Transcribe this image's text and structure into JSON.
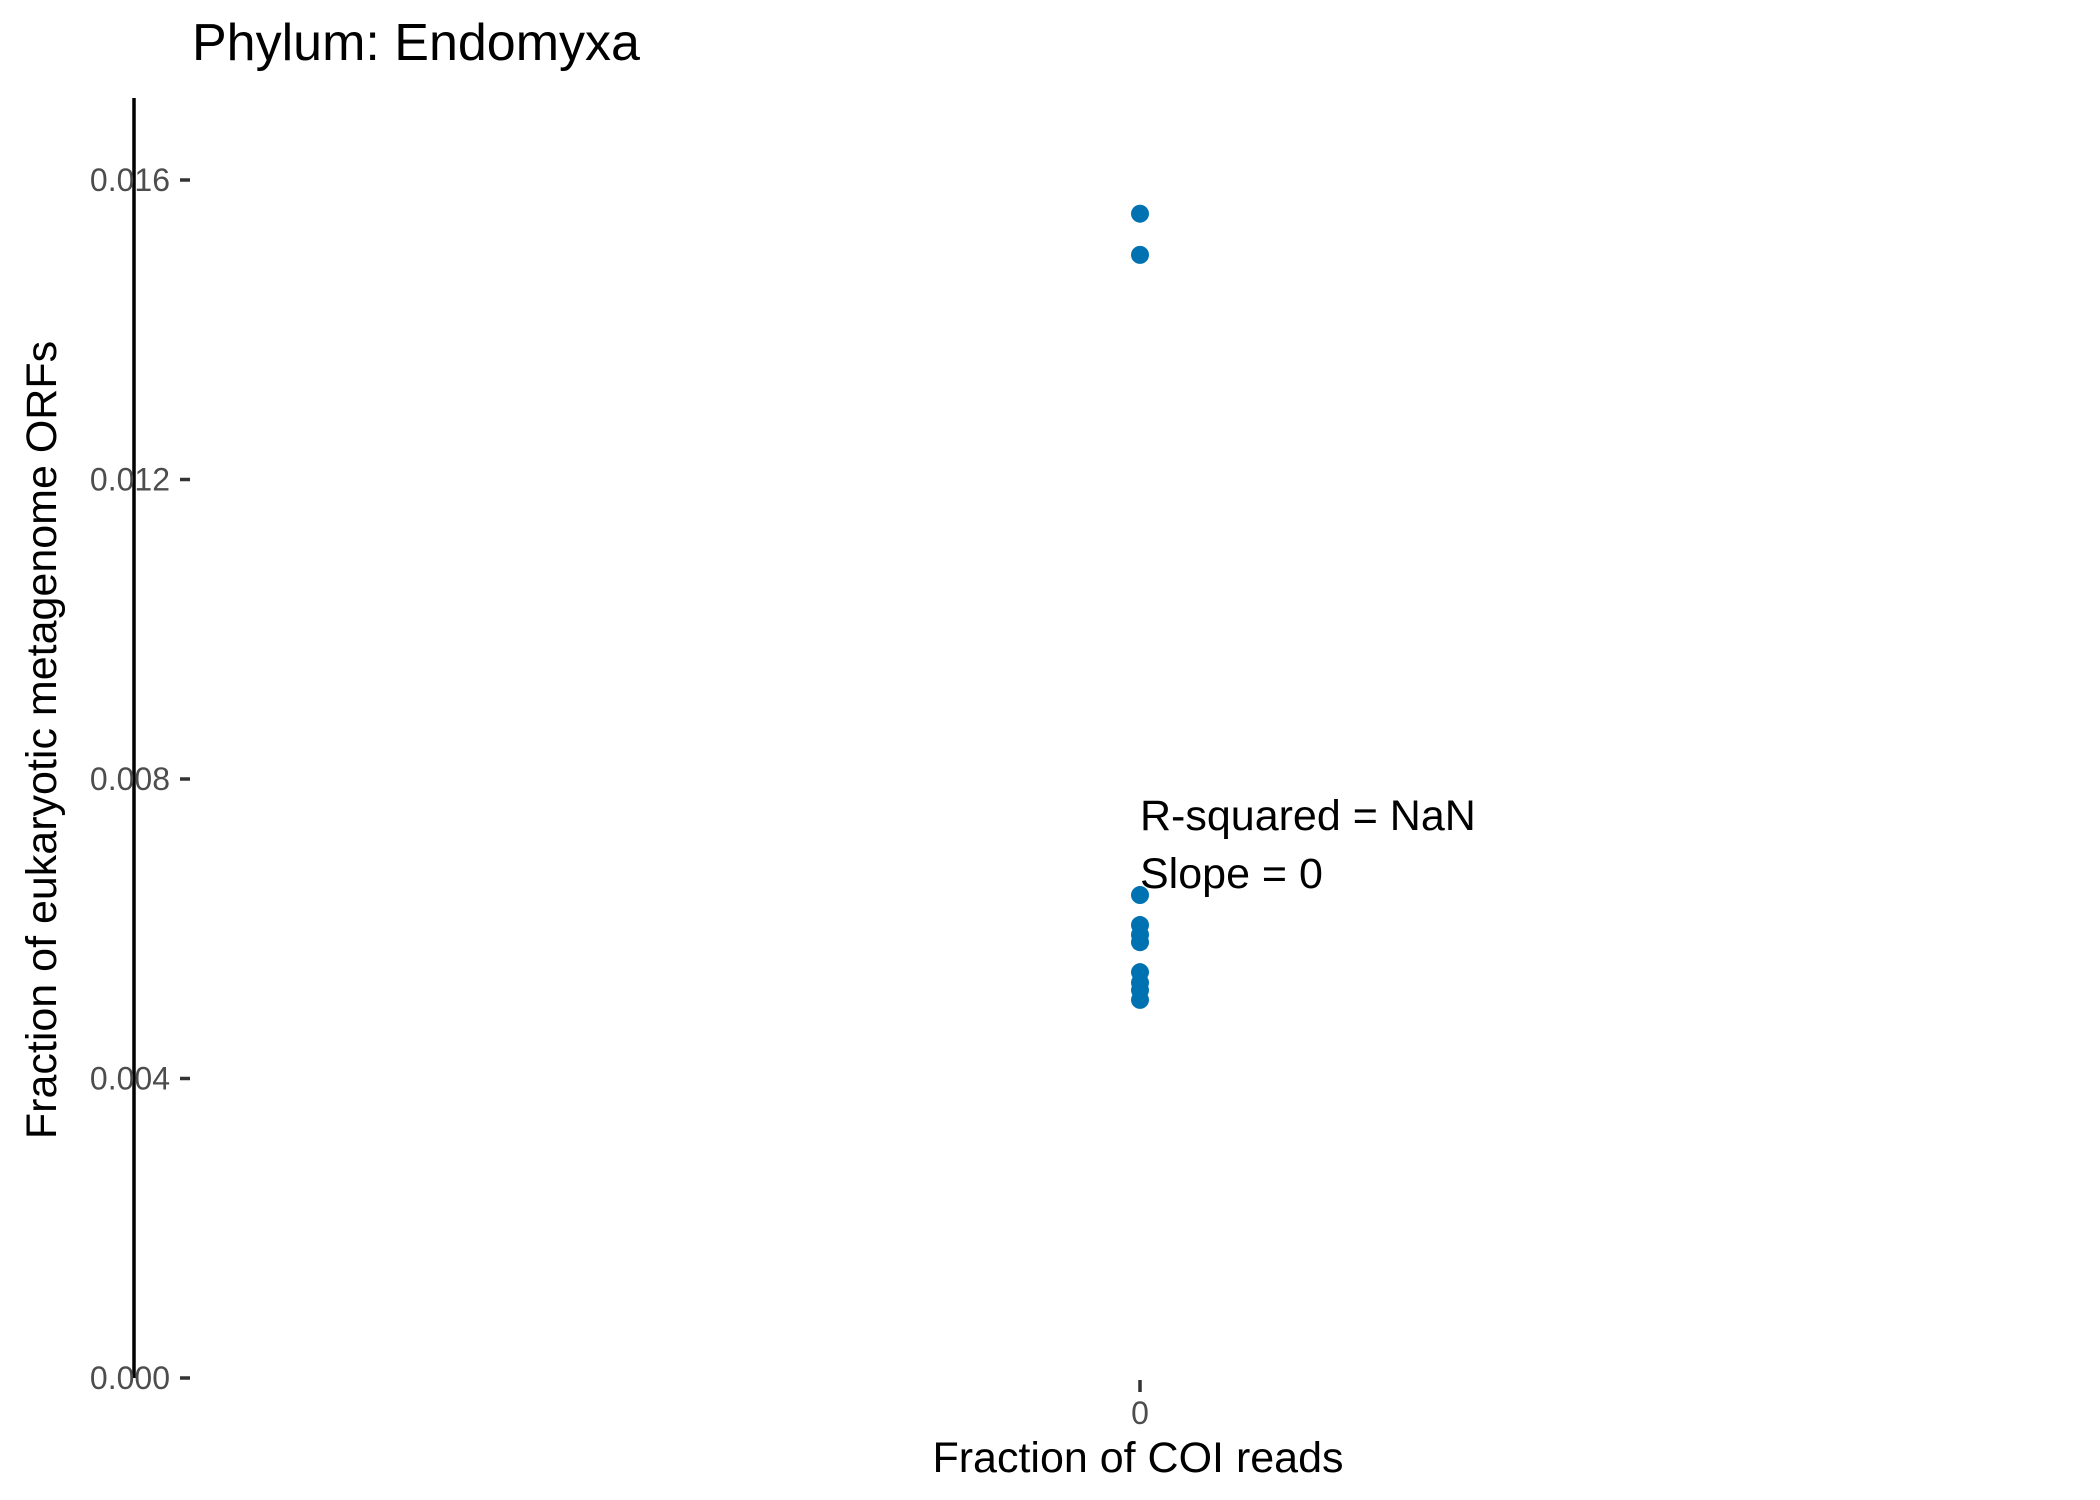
{
  "chart_data": {
    "type": "scatter",
    "title": "Phylum:  Endomyxa",
    "xlabel": "Fraction of COI reads",
    "ylabel": "Fraction of eukaryotic metagenome ORFs",
    "x_ticks": [
      "0"
    ],
    "y_ticks": [
      "0.000",
      "0.004",
      "0.008",
      "0.012",
      "0.016"
    ],
    "ylim": [
      0,
      0.0171
    ],
    "grid": false,
    "point_color": "#0072B2",
    "points": [
      {
        "x": 0,
        "y": 0.01555
      },
      {
        "x": 0,
        "y": 0.015
      },
      {
        "x": 0,
        "y": 0.00645
      },
      {
        "x": 0,
        "y": 0.00605
      },
      {
        "x": 0,
        "y": 0.00592
      },
      {
        "x": 0,
        "y": 0.00582
      },
      {
        "x": 0,
        "y": 0.00542
      },
      {
        "x": 0,
        "y": 0.00528
      },
      {
        "x": 0,
        "y": 0.00518
      },
      {
        "x": 0,
        "y": 0.00505
      }
    ],
    "annotations": [
      "R-squared =  NaN",
      "Slope =  0"
    ]
  }
}
